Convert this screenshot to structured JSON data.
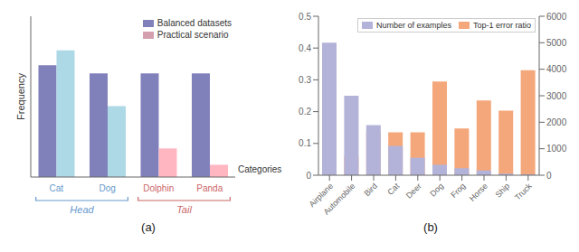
{
  "chart_data": [
    {
      "type": "bar",
      "subtitle": "(a)",
      "categories": [
        "Cat",
        "Dog",
        "Dolphin",
        "Panda"
      ],
      "series": [
        {
          "name": "Balanced datasets",
          "color": "#8080bb",
          "values": [
            0.82,
            0.76,
            0.76,
            0.76
          ]
        },
        {
          "name": "Practical scenario",
          "color": "#d4a0b0",
          "colors": [
            "#add8e6",
            "#add8e6",
            "#ffb6c1",
            "#ffb6c1"
          ],
          "values": [
            0.93,
            0.52,
            0.21,
            0.09
          ]
        }
      ],
      "ylabel": "Frequency",
      "xlabel": "Categories",
      "ylim": [
        0,
        1.18
      ],
      "tick_labels": "x",
      "legend": "upper right",
      "annotations": [
        {
          "text": "Head",
          "color": "#6699cc",
          "categories": [
            "Cat",
            "Dog"
          ]
        },
        {
          "text": "Tail",
          "color": "#cc6666",
          "categories": [
            "Dolphin",
            "Panda"
          ]
        }
      ]
    },
    {
      "type": "bar",
      "subtitle": "(b)",
      "categories": [
        "Airplane",
        "Automobile",
        "Bird",
        "Cat",
        "Deer",
        "Dog",
        "Frog",
        "Horse",
        "Ship",
        "Truck"
      ],
      "series": [
        {
          "name": "Number of examples",
          "color": "#b3b3d9",
          "values": [
            0.417,
            0.25,
            0.158,
            0.092,
            0.055,
            0.033,
            0.022,
            0.015,
            0.005,
            0.003
          ]
        },
        {
          "name": "Top-1 error ratio",
          "color": "#f4a77a",
          "values": [
            0.005,
            0.06,
            0.135,
            0.135,
            0.135,
            0.295,
            0.147,
            0.235,
            0.203,
            0.33
          ]
        }
      ],
      "ylim": [
        0,
        0.5
      ],
      "yticks": [
        0.0,
        0.1,
        0.2,
        0.3,
        0.4,
        0.5
      ],
      "y2lim": [
        0,
        6000
      ],
      "y2ticks": [
        0,
        1000,
        2000,
        3000,
        4000,
        5000,
        6000
      ],
      "legend": "upper right"
    }
  ]
}
